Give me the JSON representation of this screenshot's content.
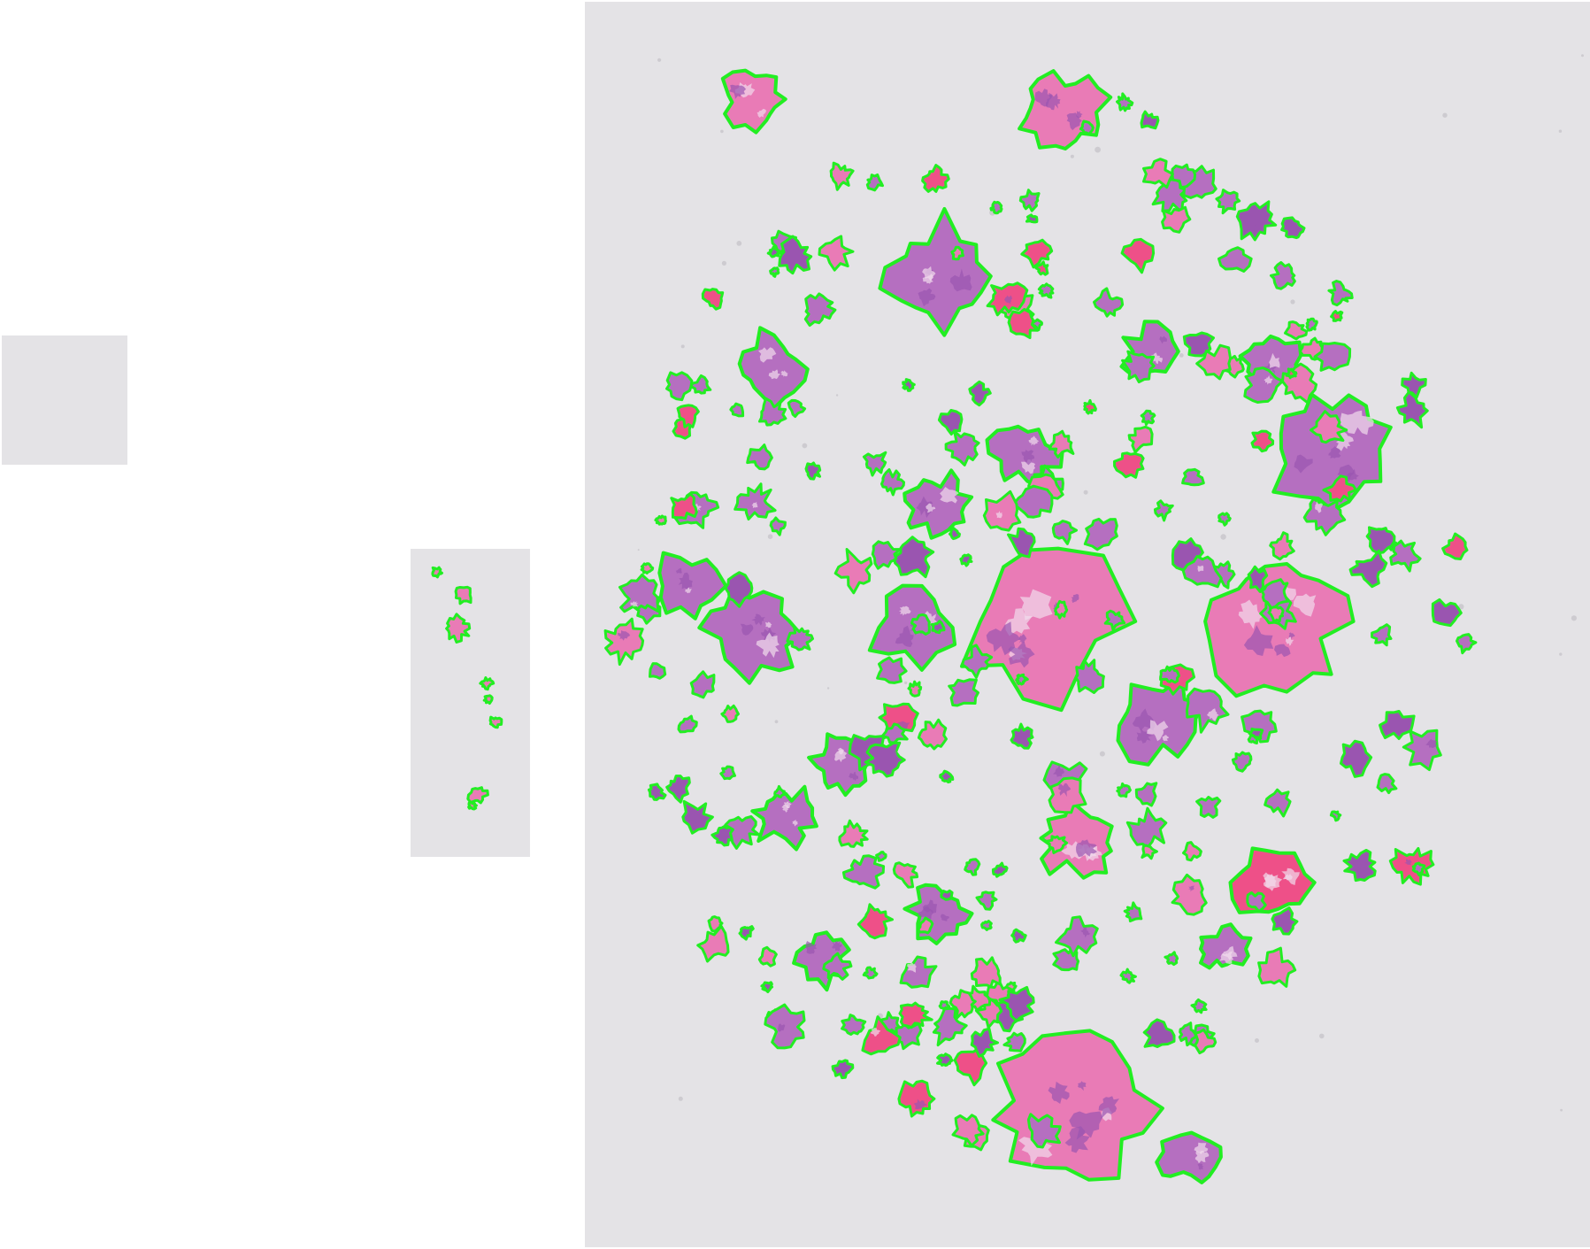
{
  "colors": {
    "background": "#ffffff",
    "slide_background": "#e4e3e6",
    "contour": "#22ee22",
    "tissue_purple": "#b56fc0",
    "tissue_dark_purple": "#9a55b0",
    "tissue_pink": "#e97bb6",
    "tissue_red": "#ee5088"
  },
  "panels": [
    {
      "role": "blank-tile",
      "has_contours": false
    },
    {
      "role": "tissue-strip-tile",
      "has_contours": true
    },
    {
      "role": "whole-slide-image",
      "has_contours": true
    }
  ]
}
